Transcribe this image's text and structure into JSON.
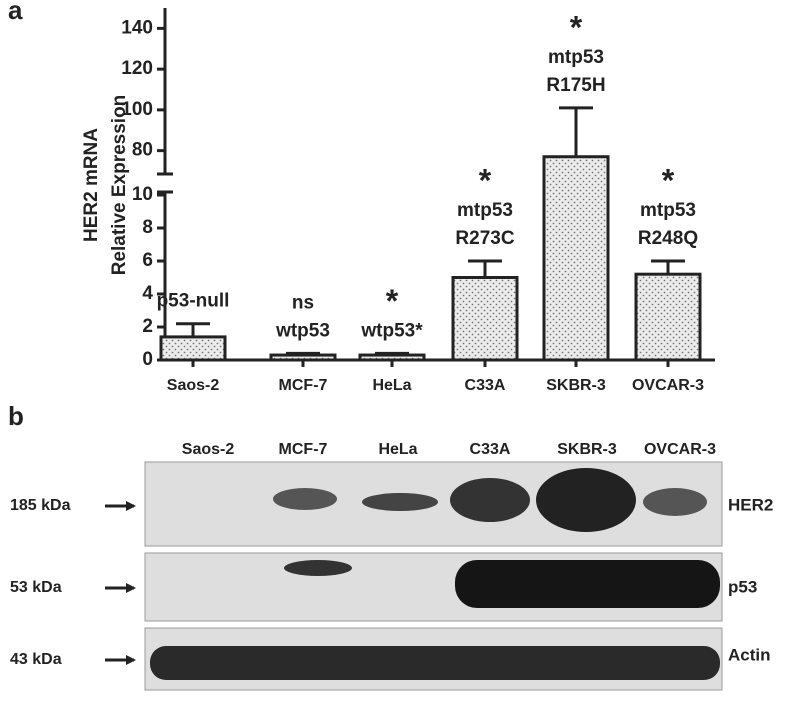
{
  "panel_labels": [
    "a",
    "b"
  ],
  "chart_data": {
    "type": "bar",
    "y_label": [
      "HER2 mRNA",
      "Relative Expression"
    ],
    "categories": [
      "Saos-2",
      "MCF-7",
      "HeLa",
      "C33A",
      "SKBR-3",
      "OVCAR-3"
    ],
    "values": [
      1.4,
      0.3,
      0.3,
      5.0,
      77,
      5.2
    ],
    "errors": [
      0.8,
      0.1,
      0.1,
      1.0,
      24,
      0.8
    ],
    "annotations": [
      [
        "p53-null"
      ],
      [
        "ns",
        "wtp53"
      ],
      [
        "*",
        "wtp53*"
      ],
      [
        "*",
        "mtp53",
        "R273C"
      ],
      [
        "*",
        "mtp53",
        "R175H"
      ],
      [
        "*",
        "mtp53",
        "R248Q"
      ]
    ],
    "color": "#e6e6e6",
    "ylim": [
      0,
      150
    ],
    "axis_break": [
      10,
      70
    ],
    "yticks": [
      0,
      2,
      4,
      6,
      8,
      10,
      80,
      100,
      120,
      140
    ]
  },
  "blot": {
    "rows": [
      {
        "size": "185 kDa",
        "protein": "HER2"
      },
      {
        "size": "53 kDa",
        "protein": "p53"
      },
      {
        "size": "43 kDa",
        "protein": "Actin"
      }
    ]
  }
}
